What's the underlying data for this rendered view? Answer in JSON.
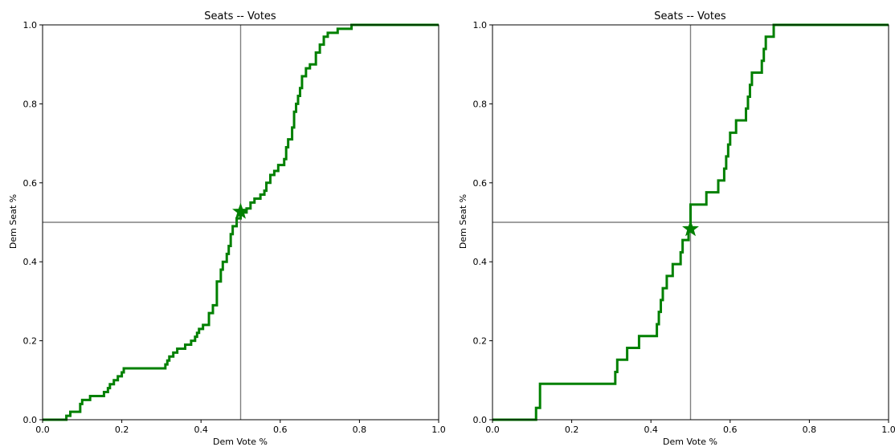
{
  "chart_data": [
    {
      "type": "line",
      "title": "Seats -- Votes",
      "xlabel": "Dem Vote %",
      "ylabel": "Dem Seat %",
      "xlim": [
        0.0,
        1.0
      ],
      "ylim": [
        0.0,
        1.0
      ],
      "xticks": [
        "0.0",
        "0.2",
        "0.4",
        "0.6",
        "0.8",
        "1.0"
      ],
      "yticks": [
        "0.0",
        "0.2",
        "0.4",
        "0.6",
        "0.8",
        "1.0"
      ],
      "reference_lines": {
        "x": 0.5,
        "y": 0.5,
        "color": "#808080"
      },
      "grid": false,
      "series": [
        {
          "color": "#008000",
          "step": true,
          "points": [
            [
              0.0,
              0.0
            ],
            [
              0.06,
              0.0
            ],
            [
              0.06,
              0.01
            ],
            [
              0.07,
              0.01
            ],
            [
              0.07,
              0.02
            ],
            [
              0.095,
              0.02
            ],
            [
              0.095,
              0.04
            ],
            [
              0.1,
              0.04
            ],
            [
              0.1,
              0.05
            ],
            [
              0.12,
              0.05
            ],
            [
              0.12,
              0.06
            ],
            [
              0.155,
              0.06
            ],
            [
              0.155,
              0.07
            ],
            [
              0.165,
              0.07
            ],
            [
              0.165,
              0.08
            ],
            [
              0.17,
              0.08
            ],
            [
              0.17,
              0.09
            ],
            [
              0.18,
              0.09
            ],
            [
              0.18,
              0.1
            ],
            [
              0.19,
              0.1
            ],
            [
              0.19,
              0.11
            ],
            [
              0.2,
              0.11
            ],
            [
              0.2,
              0.12
            ],
            [
              0.205,
              0.12
            ],
            [
              0.205,
              0.13
            ],
            [
              0.31,
              0.13
            ],
            [
              0.31,
              0.14
            ],
            [
              0.315,
              0.14
            ],
            [
              0.315,
              0.15
            ],
            [
              0.32,
              0.15
            ],
            [
              0.32,
              0.16
            ],
            [
              0.33,
              0.16
            ],
            [
              0.33,
              0.17
            ],
            [
              0.34,
              0.17
            ],
            [
              0.34,
              0.18
            ],
            [
              0.36,
              0.18
            ],
            [
              0.36,
              0.19
            ],
            [
              0.375,
              0.19
            ],
            [
              0.375,
              0.2
            ],
            [
              0.385,
              0.2
            ],
            [
              0.385,
              0.21
            ],
            [
              0.39,
              0.21
            ],
            [
              0.39,
              0.22
            ],
            [
              0.395,
              0.22
            ],
            [
              0.395,
              0.23
            ],
            [
              0.405,
              0.23
            ],
            [
              0.405,
              0.24
            ],
            [
              0.42,
              0.24
            ],
            [
              0.42,
              0.27
            ],
            [
              0.43,
              0.27
            ],
            [
              0.43,
              0.29
            ],
            [
              0.44,
              0.29
            ],
            [
              0.44,
              0.35
            ],
            [
              0.45,
              0.35
            ],
            [
              0.45,
              0.38
            ],
            [
              0.455,
              0.38
            ],
            [
              0.455,
              0.4
            ],
            [
              0.465,
              0.4
            ],
            [
              0.465,
              0.42
            ],
            [
              0.47,
              0.42
            ],
            [
              0.47,
              0.44
            ],
            [
              0.475,
              0.44
            ],
            [
              0.475,
              0.47
            ],
            [
              0.48,
              0.47
            ],
            [
              0.48,
              0.49
            ],
            [
              0.49,
              0.49
            ],
            [
              0.49,
              0.51
            ],
            [
              0.5,
              0.51
            ],
            [
              0.5,
              0.525
            ],
            [
              0.515,
              0.525
            ],
            [
              0.515,
              0.535
            ],
            [
              0.525,
              0.535
            ],
            [
              0.525,
              0.55
            ],
            [
              0.535,
              0.55
            ],
            [
              0.535,
              0.56
            ],
            [
              0.55,
              0.56
            ],
            [
              0.55,
              0.57
            ],
            [
              0.56,
              0.57
            ],
            [
              0.56,
              0.58
            ],
            [
              0.565,
              0.58
            ],
            [
              0.565,
              0.6
            ],
            [
              0.575,
              0.6
            ],
            [
              0.575,
              0.62
            ],
            [
              0.585,
              0.62
            ],
            [
              0.585,
              0.63
            ],
            [
              0.595,
              0.63
            ],
            [
              0.595,
              0.645
            ],
            [
              0.61,
              0.645
            ],
            [
              0.61,
              0.66
            ],
            [
              0.615,
              0.66
            ],
            [
              0.615,
              0.69
            ],
            [
              0.62,
              0.69
            ],
            [
              0.62,
              0.71
            ],
            [
              0.63,
              0.71
            ],
            [
              0.63,
              0.74
            ],
            [
              0.635,
              0.74
            ],
            [
              0.635,
              0.78
            ],
            [
              0.64,
              0.78
            ],
            [
              0.64,
              0.8
            ],
            [
              0.645,
              0.8
            ],
            [
              0.645,
              0.82
            ],
            [
              0.65,
              0.82
            ],
            [
              0.65,
              0.84
            ],
            [
              0.655,
              0.84
            ],
            [
              0.655,
              0.87
            ],
            [
              0.665,
              0.87
            ],
            [
              0.665,
              0.89
            ],
            [
              0.675,
              0.89
            ],
            [
              0.675,
              0.9
            ],
            [
              0.69,
              0.9
            ],
            [
              0.69,
              0.93
            ],
            [
              0.7,
              0.93
            ],
            [
              0.7,
              0.95
            ],
            [
              0.71,
              0.95
            ],
            [
              0.71,
              0.97
            ],
            [
              0.72,
              0.97
            ],
            [
              0.72,
              0.98
            ],
            [
              0.745,
              0.98
            ],
            [
              0.745,
              0.99
            ],
            [
              0.78,
              0.99
            ],
            [
              0.78,
              1.0
            ],
            [
              1.0,
              1.0
            ]
          ]
        }
      ],
      "marker": {
        "shape": "star",
        "x": 0.5,
        "y": 0.527,
        "color": "#008000"
      }
    },
    {
      "type": "line",
      "title": "Seats -- Votes",
      "xlabel": "Dem Vote %",
      "ylabel": "Dem Seat %",
      "xlim": [
        0.0,
        1.0
      ],
      "ylim": [
        0.0,
        1.0
      ],
      "xticks": [
        "0.0",
        "0.2",
        "0.4",
        "0.6",
        "0.8",
        "1.0"
      ],
      "yticks": [
        "0.0",
        "0.2",
        "0.4",
        "0.6",
        "0.8",
        "1.0"
      ],
      "reference_lines": {
        "x": 0.5,
        "y": 0.5,
        "color": "#808080"
      },
      "grid": false,
      "series": [
        {
          "color": "#008000",
          "step": true,
          "points": [
            [
              0.0,
              0.0
            ],
            [
              0.11,
              0.0
            ],
            [
              0.11,
              0.03
            ],
            [
              0.12,
              0.03
            ],
            [
              0.12,
              0.091
            ],
            [
              0.31,
              0.091
            ],
            [
              0.31,
              0.121
            ],
            [
              0.315,
              0.121
            ],
            [
              0.315,
              0.152
            ],
            [
              0.34,
              0.152
            ],
            [
              0.34,
              0.182
            ],
            [
              0.37,
              0.182
            ],
            [
              0.37,
              0.212
            ],
            [
              0.415,
              0.212
            ],
            [
              0.415,
              0.242
            ],
            [
              0.42,
              0.242
            ],
            [
              0.42,
              0.273
            ],
            [
              0.425,
              0.273
            ],
            [
              0.425,
              0.303
            ],
            [
              0.43,
              0.303
            ],
            [
              0.43,
              0.333
            ],
            [
              0.44,
              0.333
            ],
            [
              0.44,
              0.364
            ],
            [
              0.455,
              0.364
            ],
            [
              0.455,
              0.394
            ],
            [
              0.475,
              0.394
            ],
            [
              0.475,
              0.424
            ],
            [
              0.48,
              0.424
            ],
            [
              0.48,
              0.455
            ],
            [
              0.495,
              0.455
            ],
            [
              0.495,
              0.485
            ],
            [
              0.5,
              0.485
            ],
            [
              0.5,
              0.545
            ],
            [
              0.54,
              0.545
            ],
            [
              0.54,
              0.576
            ],
            [
              0.57,
              0.576
            ],
            [
              0.57,
              0.606
            ],
            [
              0.585,
              0.606
            ],
            [
              0.585,
              0.636
            ],
            [
              0.59,
              0.636
            ],
            [
              0.59,
              0.667
            ],
            [
              0.595,
              0.667
            ],
            [
              0.595,
              0.697
            ],
            [
              0.6,
              0.697
            ],
            [
              0.6,
              0.727
            ],
            [
              0.615,
              0.727
            ],
            [
              0.615,
              0.758
            ],
            [
              0.64,
              0.758
            ],
            [
              0.64,
              0.788
            ],
            [
              0.645,
              0.788
            ],
            [
              0.645,
              0.818
            ],
            [
              0.65,
              0.818
            ],
            [
              0.65,
              0.848
            ],
            [
              0.655,
              0.848
            ],
            [
              0.655,
              0.879
            ],
            [
              0.68,
              0.879
            ],
            [
              0.68,
              0.909
            ],
            [
              0.685,
              0.909
            ],
            [
              0.685,
              0.939
            ],
            [
              0.69,
              0.939
            ],
            [
              0.69,
              0.97
            ],
            [
              0.71,
              0.97
            ],
            [
              0.71,
              1.0
            ],
            [
              1.0,
              1.0
            ]
          ]
        }
      ],
      "marker": {
        "shape": "star",
        "x": 0.5,
        "y": 0.483,
        "color": "#008000"
      }
    }
  ]
}
